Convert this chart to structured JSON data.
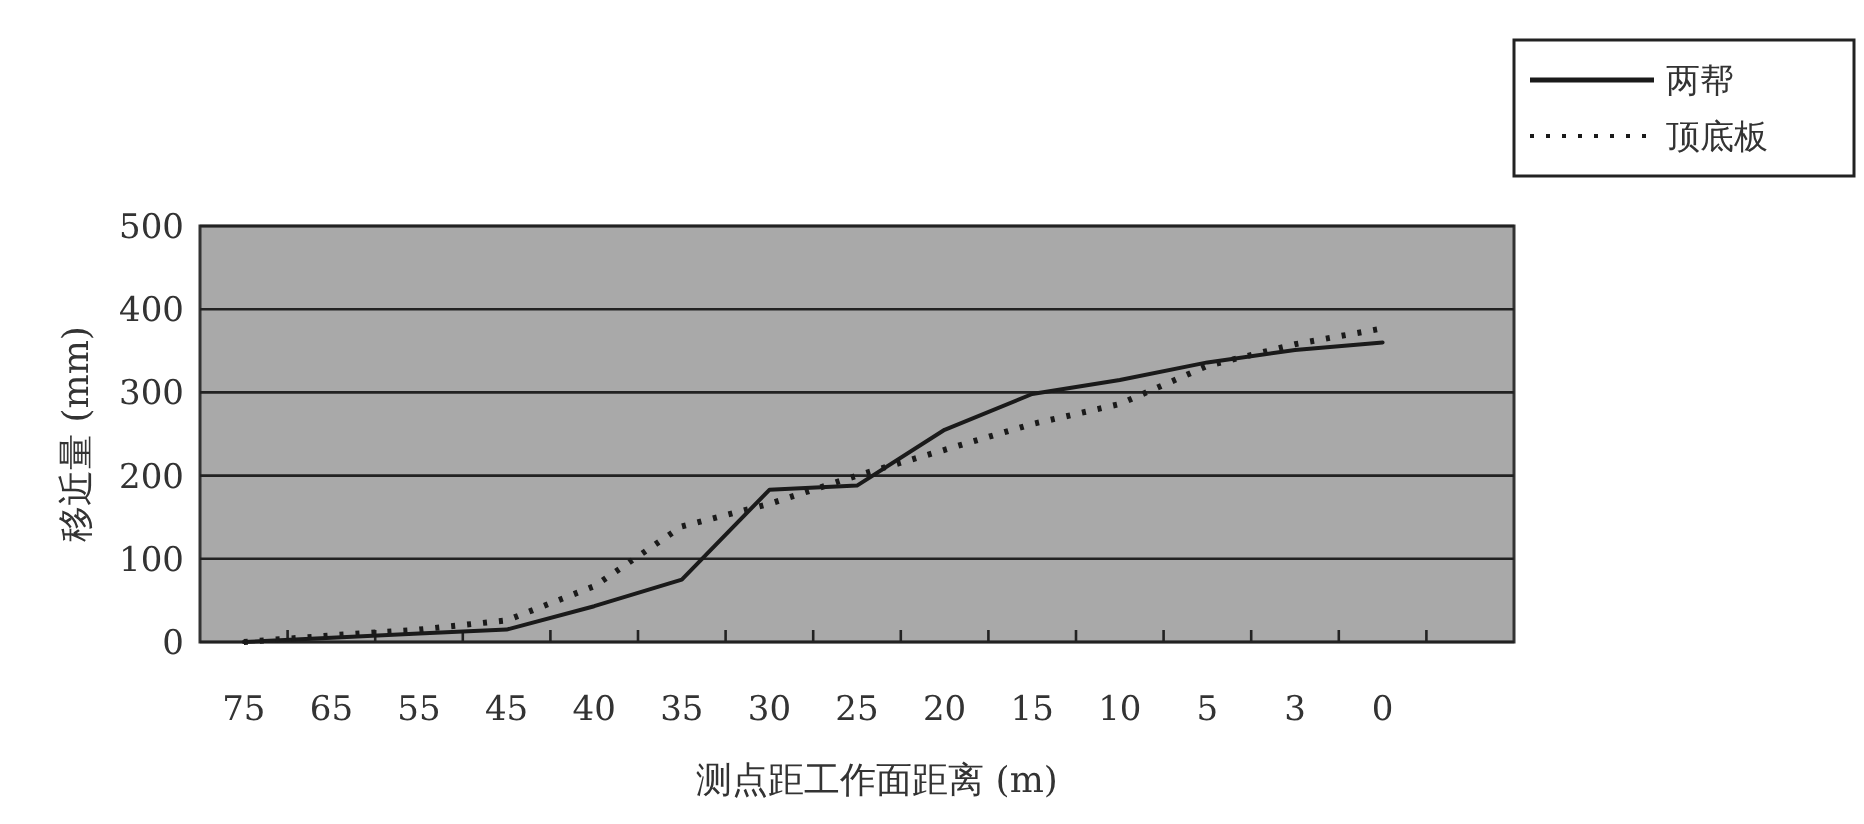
{
  "chart_data": {
    "type": "line",
    "xlabel": "测点距工作面距离 (m)",
    "ylabel": "移近量 (mm)",
    "categories": [
      "75",
      "65",
      "55",
      "45",
      "40",
      "35",
      "30",
      "25",
      "20",
      "15",
      "10",
      "5",
      "3",
      "0",
      null
    ],
    "series": [
      {
        "name": "两帮",
        "color": "#1a1a1a",
        "line_style": "solid",
        "values": [
          0,
          5,
          10,
          15,
          43,
          75,
          183,
          188,
          255,
          298,
          315,
          336,
          351,
          360,
          null
        ]
      },
      {
        "name": "顶底板",
        "color": "#1a1a1a",
        "line_style": "dotted",
        "values": [
          0,
          8,
          15,
          26,
          67,
          139,
          166,
          200,
          231,
          262,
          286,
          332,
          358,
          377,
          null
        ]
      }
    ],
    "ylim": [
      0,
      500
    ],
    "yticks": [
      0,
      100,
      200,
      300,
      400,
      500
    ],
    "grid": "y",
    "legend": "top right"
  }
}
